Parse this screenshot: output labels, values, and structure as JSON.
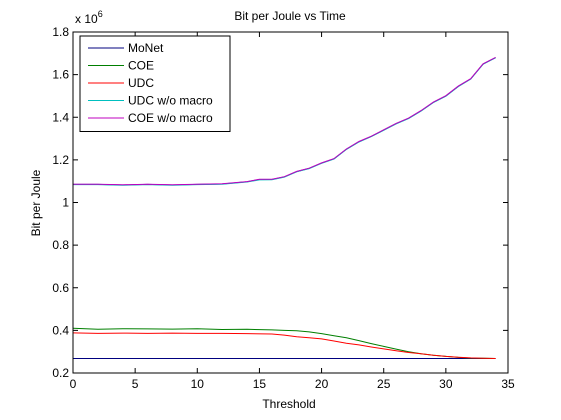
{
  "chart_data": {
    "type": "line",
    "title": "Bit per Joule vs Time",
    "xlabel": "Threshold",
    "ylabel": "Bit per Joule",
    "y_multiplier": "x 10",
    "y_exponent": "6",
    "xlim": [
      0,
      35
    ],
    "ylim": [
      200000,
      1800000
    ],
    "xticks": [
      0,
      5,
      10,
      15,
      20,
      25,
      30,
      35
    ],
    "yticks": [
      200000,
      400000,
      600000,
      800000,
      1000000,
      1200000,
      1400000,
      1600000,
      1800000
    ],
    "ytick_labels": [
      "0.2",
      "0.4",
      "0.6",
      "0.8",
      "1",
      "1.2",
      "1.4",
      "1.6",
      "1.8"
    ],
    "grid": false,
    "legend_position": "top-left",
    "series": [
      {
        "name": "MoNet",
        "color": "#00007f",
        "x": [
          0,
          2,
          4,
          6,
          8,
          10,
          12,
          14,
          15,
          16,
          17,
          18,
          19,
          20,
          21,
          22,
          23,
          24,
          25,
          26,
          27,
          28,
          29,
          30,
          31,
          32,
          33,
          34
        ],
        "y": [
          1085000,
          1085000,
          1082000,
          1085000,
          1082000,
          1085000,
          1087000,
          1097000,
          1108000,
          1108000,
          1120000,
          1145000,
          1160000,
          1185000,
          1205000,
          1250000,
          1285000,
          1310000,
          1340000,
          1370000,
          1395000,
          1430000,
          1470000,
          1500000,
          1545000,
          1580000,
          1650000,
          1680000
        ]
      },
      {
        "name": "COE",
        "color": "#007f00",
        "x": [
          0,
          2,
          4,
          6,
          8,
          10,
          12,
          14,
          16,
          17,
          18,
          19,
          20,
          21,
          22,
          23,
          24,
          25,
          26,
          27,
          28,
          29,
          30,
          31,
          32,
          33,
          34
        ],
        "y": [
          410000,
          405000,
          408000,
          407000,
          406000,
          408000,
          404000,
          405000,
          402000,
          400000,
          398000,
          393000,
          385000,
          375000,
          365000,
          352000,
          338000,
          325000,
          312000,
          300000,
          290000,
          283000,
          278000,
          273000,
          270000,
          269000,
          268000
        ]
      },
      {
        "name": "UDC",
        "color": "#ff0000",
        "x": [
          0,
          2,
          4,
          6,
          8,
          10,
          12,
          14,
          16,
          17,
          18,
          19,
          20,
          21,
          22,
          23,
          24,
          25,
          26,
          27,
          28,
          29,
          30,
          31,
          32,
          33,
          34
        ],
        "y": [
          388000,
          386000,
          387000,
          386000,
          387000,
          386000,
          386000,
          385000,
          383000,
          378000,
          370000,
          365000,
          360000,
          350000,
          340000,
          332000,
          322000,
          313000,
          304000,
          296000,
          290000,
          283000,
          278000,
          274000,
          271000,
          269000,
          268000
        ]
      },
      {
        "name": "UDC w/o macro",
        "color": "#00bfbf",
        "x": [
          0,
          2,
          4,
          6,
          8,
          10,
          12,
          14,
          15,
          16,
          17,
          18,
          19,
          20,
          21,
          22,
          23,
          24,
          25,
          26,
          27,
          28,
          29,
          30,
          31,
          32,
          33,
          34
        ],
        "y": [
          1084000,
          1084000,
          1081000,
          1084000,
          1081000,
          1084000,
          1086000,
          1096000,
          1106000,
          1107000,
          1119000,
          1144000,
          1159000,
          1184000,
          1204000,
          1249000,
          1284000,
          1309000,
          1339000,
          1369000,
          1394000,
          1429000,
          1469000,
          1499000,
          1544000,
          1579000,
          1649000,
          1679000
        ]
      },
      {
        "name": "COE w/o macro",
        "color": "#bf00bf",
        "x": [
          0,
          2,
          4,
          6,
          8,
          10,
          12,
          14,
          15,
          16,
          17,
          18,
          19,
          20,
          21,
          22,
          23,
          24,
          25,
          26,
          27,
          28,
          29,
          30,
          31,
          32,
          33,
          34
        ],
        "y": [
          1086000,
          1086000,
          1083000,
          1086000,
          1083000,
          1086000,
          1088000,
          1098000,
          1109000,
          1109000,
          1121000,
          1146000,
          1161000,
          1186000,
          1206000,
          1251000,
          1286000,
          1311000,
          1341000,
          1371000,
          1396000,
          1431000,
          1471000,
          1501000,
          1546000,
          1581000,
          1651000,
          1681000
        ]
      }
    ],
    "extra_lines": [
      {
        "color": "#00007f",
        "x": [
          0,
          34
        ],
        "y": [
          268000,
          268000
        ]
      }
    ]
  }
}
